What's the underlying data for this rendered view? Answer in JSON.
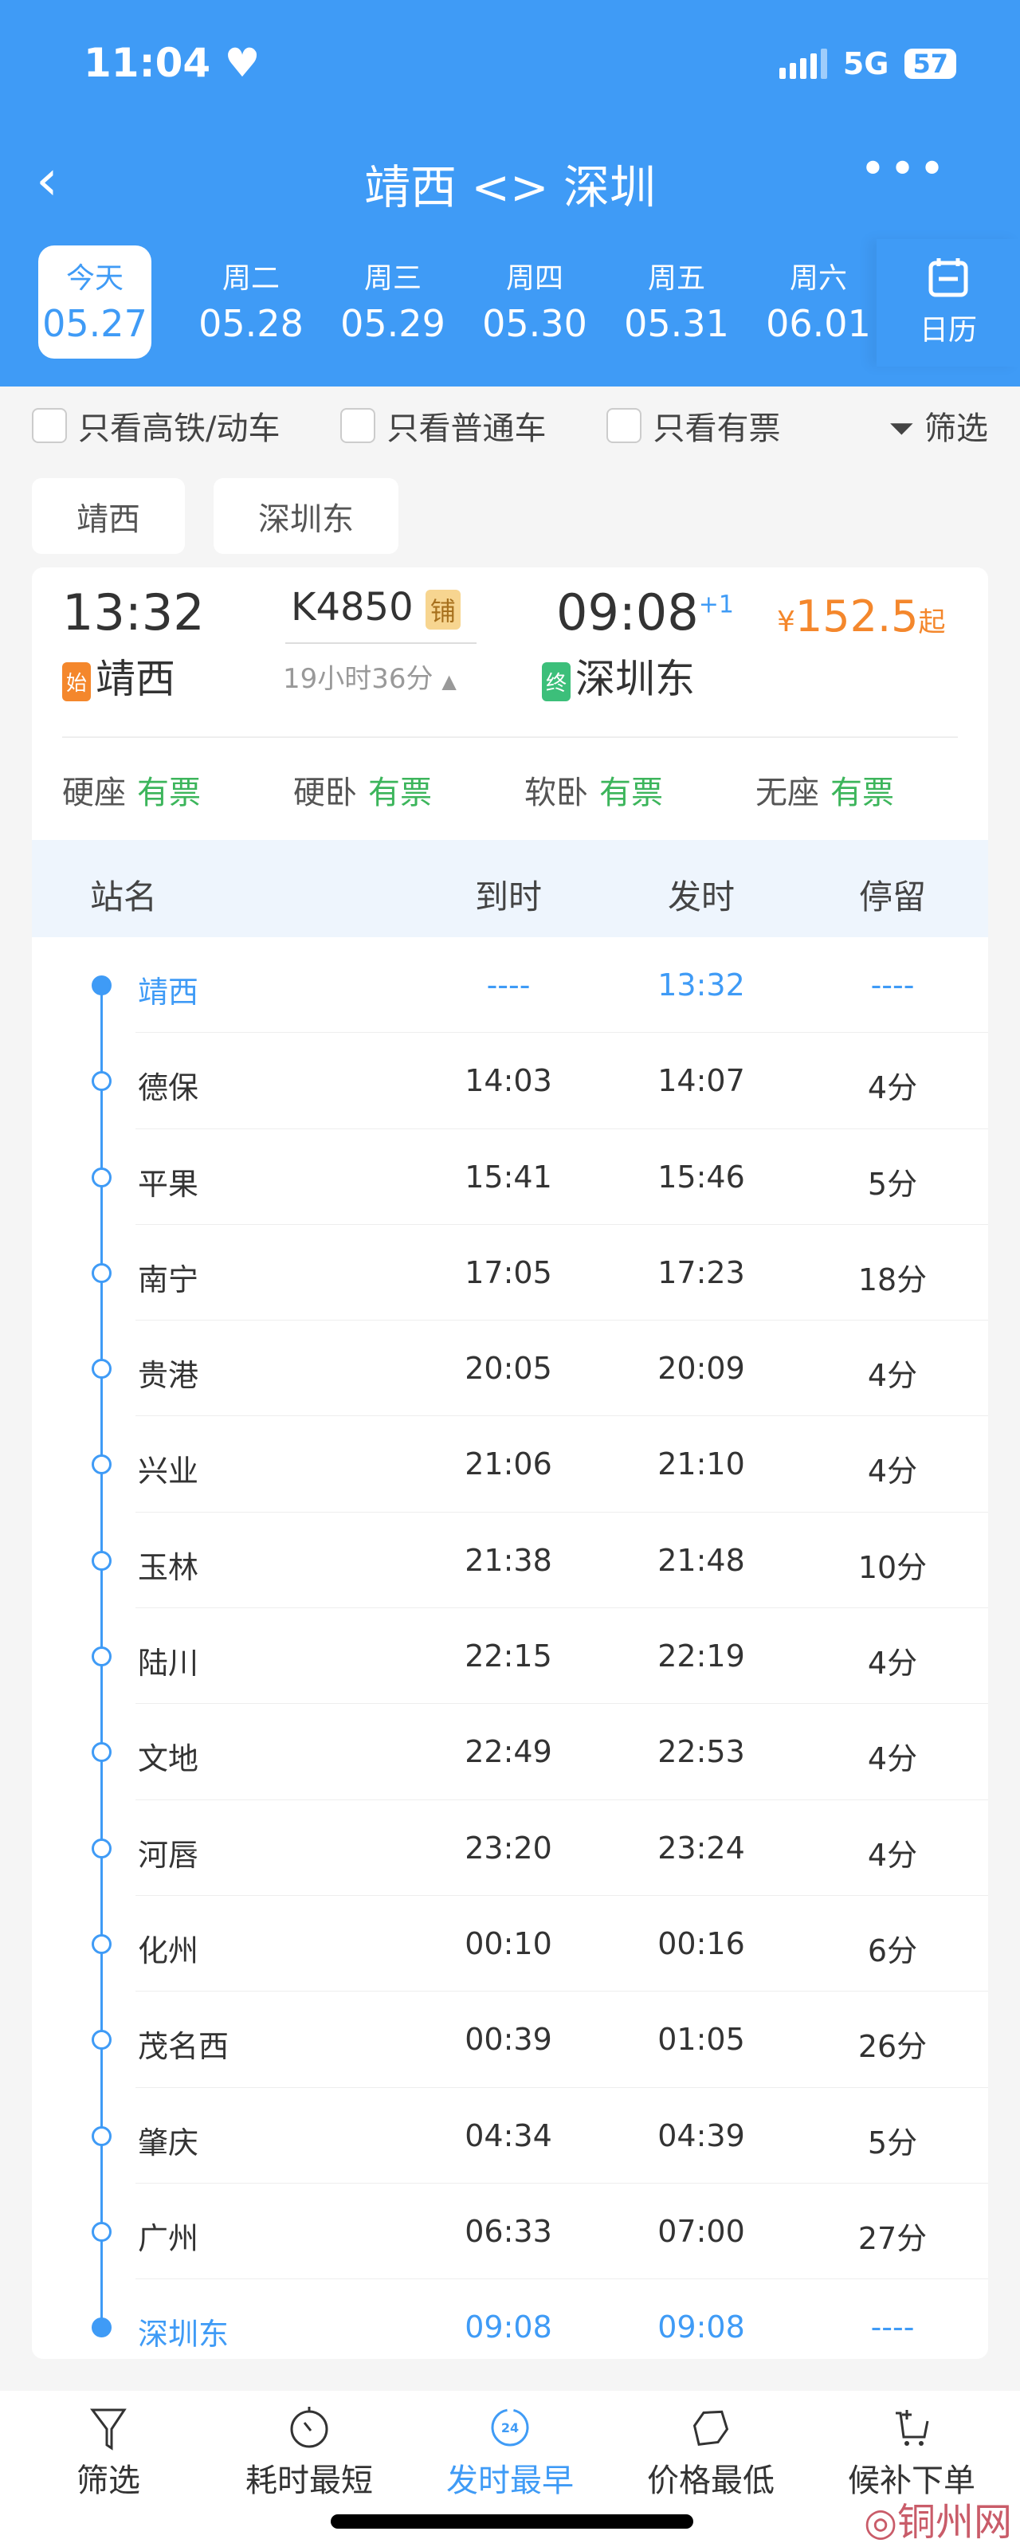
{
  "status": {
    "time": "11:04",
    "network": "5G",
    "battery": "57"
  },
  "nav": {
    "title": "靖西 <> 深圳",
    "back_icon": "chevron-left-icon",
    "more_icon": "more-icon"
  },
  "dates": [
    {
      "w": "今天",
      "d": "05.27"
    },
    {
      "w": "周二",
      "d": "05.28"
    },
    {
      "w": "周三",
      "d": "05.29"
    },
    {
      "w": "周四",
      "d": "05.30"
    },
    {
      "w": "周五",
      "d": "05.31"
    },
    {
      "w": "周六",
      "d": "06.01"
    }
  ],
  "calendar_label": "日历",
  "filters": {
    "high_speed": "只看高铁/动车",
    "normal": "只看普通车",
    "available": "只看有票",
    "filter": "筛选"
  },
  "station_chips": [
    "靖西",
    "深圳东"
  ],
  "train": {
    "dep_time": "13:32",
    "number": "K4850",
    "berth_tag": "铺",
    "arr_time": "09:08",
    "day_offset": "+1",
    "price_symbol": "¥",
    "price": "152.5",
    "price_suffix": "起",
    "duration": "19小时36分",
    "from_tag": "始",
    "from": "靖西",
    "to_tag": "终",
    "to": "深圳东",
    "seats": [
      {
        "type": "硬座",
        "status": "有票"
      },
      {
        "type": "硬卧",
        "status": "有票"
      },
      {
        "type": "软卧",
        "status": "有票"
      },
      {
        "type": "无座",
        "status": "有票"
      }
    ]
  },
  "colors": {
    "primary": "#3f9bf6",
    "price": "#f4872c",
    "available": "#3cb55b",
    "start_tag": "#f4872c",
    "end_tag": "#3cbf7a"
  },
  "table": {
    "headers": [
      "站名",
      "到时",
      "发时",
      "停留"
    ],
    "rows": [
      [
        "靖西",
        "----",
        "13:32",
        "----"
      ],
      [
        "德保",
        "14:03",
        "14:07",
        "4分"
      ],
      [
        "平果",
        "15:41",
        "15:46",
        "5分"
      ],
      [
        "南宁",
        "17:05",
        "17:23",
        "18分"
      ],
      [
        "贵港",
        "20:05",
        "20:09",
        "4分"
      ],
      [
        "兴业",
        "21:06",
        "21:10",
        "4分"
      ],
      [
        "玉林",
        "21:38",
        "21:48",
        "10分"
      ],
      [
        "陆川",
        "22:15",
        "22:19",
        "4分"
      ],
      [
        "文地",
        "22:49",
        "22:53",
        "4分"
      ],
      [
        "河唇",
        "23:20",
        "23:24",
        "4分"
      ],
      [
        "化州",
        "00:10",
        "00:16",
        "6分"
      ],
      [
        "茂名西",
        "00:39",
        "01:05",
        "26分"
      ],
      [
        "肇庆",
        "04:34",
        "04:39",
        "5分"
      ],
      [
        "广州",
        "06:33",
        "07:00",
        "27分"
      ],
      [
        "深圳东",
        "09:08",
        "09:08",
        "----"
      ]
    ]
  },
  "bottom_tabs": [
    {
      "label": "筛选",
      "icon": "filter-icon"
    },
    {
      "label": "耗时最短",
      "icon": "timer-icon"
    },
    {
      "label": "发时最早",
      "icon": "clock-24-icon",
      "badge": "24",
      "active": true
    },
    {
      "label": "价格最低",
      "icon": "price-tag-icon"
    },
    {
      "label": "候补下单",
      "icon": "cart-add-icon"
    }
  ],
  "watermark": "铜州网"
}
